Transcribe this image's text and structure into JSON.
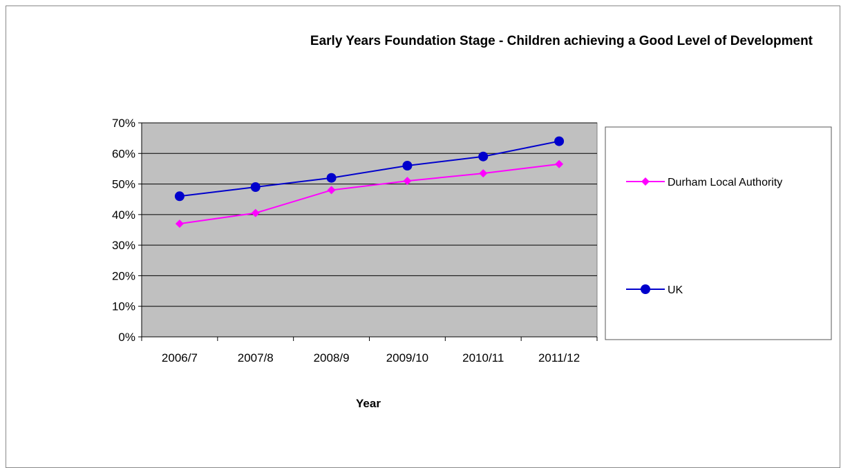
{
  "chart_data": {
    "type": "line",
    "title": "Early Years Foundation Stage - Children achieving a Good Level of Development",
    "xlabel": "Year",
    "ylabel": "",
    "categories": [
      "2006/7",
      "2007/8",
      "2008/9",
      "2009/10",
      "2010/11",
      "2011/12"
    ],
    "ylim": [
      0,
      70
    ],
    "ytick_step": 10,
    "ytick_suffix": "%",
    "grid": true,
    "legend_position": "right",
    "series": [
      {
        "name": "Durham Local Authority",
        "values": [
          37,
          40.5,
          48,
          51,
          53.5,
          56.5
        ],
        "color": "#ff00ff",
        "marker": "diamond"
      },
      {
        "name": "UK",
        "values": [
          46,
          49,
          52,
          56,
          59,
          64
        ],
        "color": "#0000cc",
        "marker": "circle"
      }
    ],
    "plot_background": "#c0c0c0"
  }
}
